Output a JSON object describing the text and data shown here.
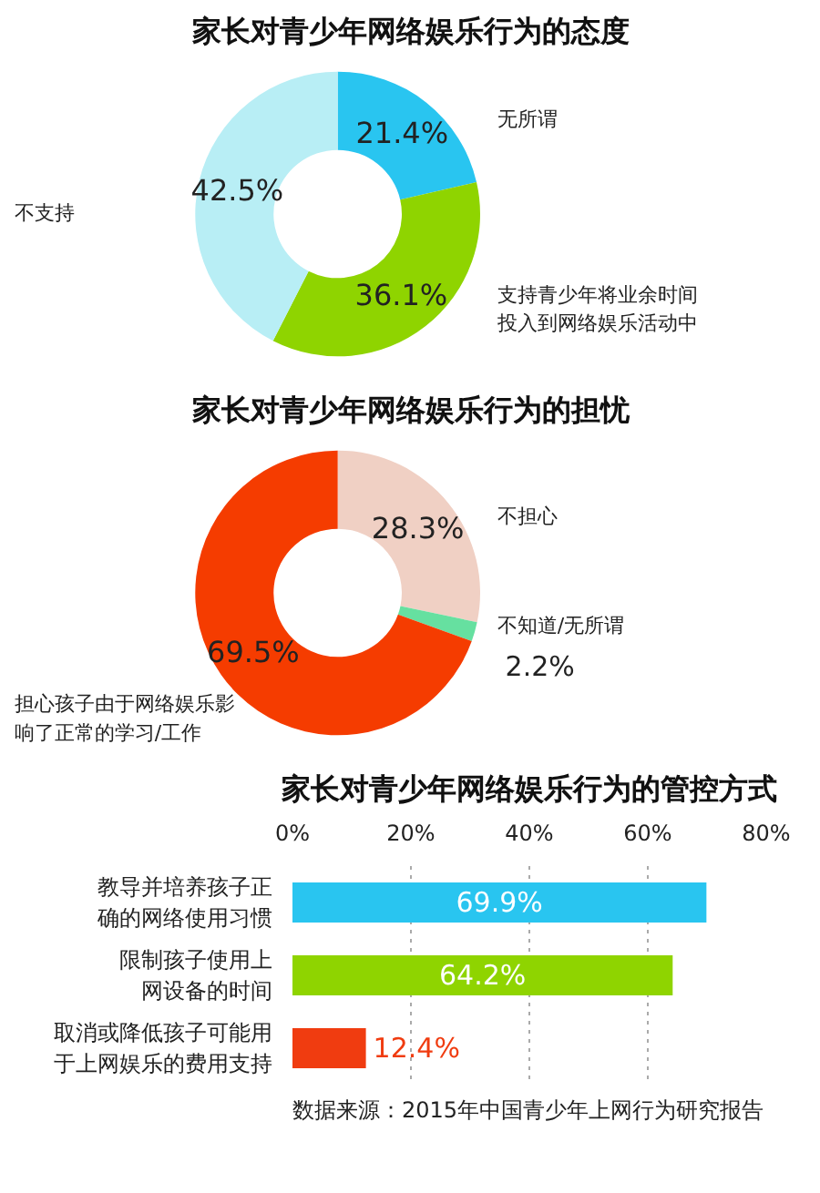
{
  "chart_data": [
    {
      "type": "donut",
      "title": "家长对青少年网络娱乐行为的态度",
      "categories": [
        "无所谓",
        "支持青少年将业余时间投入到网络娱乐活动中",
        "不支持"
      ],
      "values": [
        21.4,
        36.1,
        42.5
      ],
      "value_labels": [
        "21.4%",
        "36.1%",
        "42.5%"
      ],
      "colors": [
        "#29c5f0",
        "#8fd400",
        "#b8eef5"
      ]
    },
    {
      "type": "donut",
      "title": "家长对青少年网络娱乐行为的担忧",
      "categories": [
        "不担心",
        "不知道/无所谓",
        "担心孩子由于网络娱乐影响了正常的学习/工作"
      ],
      "values": [
        28.3,
        2.2,
        69.5
      ],
      "value_labels": [
        "28.3%",
        "2.2%",
        "69.5%"
      ],
      "colors": [
        "#f0d0c4",
        "#66e0a0",
        "#f53c00"
      ]
    },
    {
      "type": "bar",
      "orientation": "horizontal",
      "title": "家长对青少年网络娱乐行为的管控方式",
      "categories": [
        "教导并培养孩子正确的网络使用习惯",
        "限制孩子使用上网设备的时间",
        "取消或降低孩子可能用于上网娱乐的费用支持"
      ],
      "values": [
        69.9,
        64.2,
        12.4
      ],
      "value_labels": [
        "69.9%",
        "64.2%",
        "12.4%"
      ],
      "colors": [
        "#29c5f0",
        "#8fd400",
        "#f03c10"
      ],
      "xlim": [
        0,
        80
      ],
      "xticks": [
        {
          "value": 0,
          "label": "0%"
        },
        {
          "value": 20,
          "label": "20%"
        },
        {
          "value": 40,
          "label": "40%"
        },
        {
          "value": 60,
          "label": "60%"
        },
        {
          "value": 80,
          "label": "80%"
        }
      ],
      "grid": "x",
      "annotations": [
        "数据来源：2015年中国青少年上网行为研究报告"
      ]
    }
  ]
}
